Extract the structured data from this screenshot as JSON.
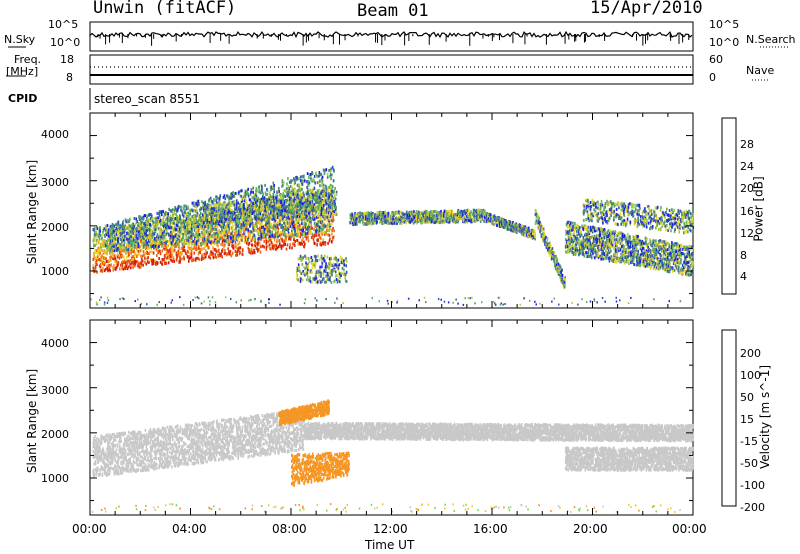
{
  "header": {
    "radar": "Unwin (fitACF)",
    "beam": "Beam 01",
    "date": "15/Apr/2010"
  },
  "top_panels": {
    "nsky_label": "N.Sky",
    "nsearch_label": "N.Search",
    "noise_ticks": [
      "10^5",
      "10^0"
    ],
    "freq_label": "Freq.",
    "freq_unit": "[MHz]",
    "freq_ticks": [
      "18",
      "8"
    ],
    "nave_label": "Nave",
    "nave_ticks": [
      "60",
      "0"
    ],
    "cpid_label": "CPID",
    "cpid_value": "stereo_scan 8551"
  },
  "chart_data": [
    {
      "type": "heatmap",
      "name": "power",
      "xlabel": "",
      "ylabel": "Slant Range [km]",
      "xlim": [
        0,
        24
      ],
      "ylim": [
        180,
        4500
      ],
      "y_ticks": [
        "1000",
        "2000",
        "3000",
        "4000"
      ],
      "colorbar_label": "Power [dB]",
      "colorbar_ticks": [
        "4",
        "8",
        "12",
        "16",
        "20",
        "24",
        "28"
      ],
      "colorbar_range": [
        0,
        30
      ],
      "colorbar_colors": [
        "#1e1ee6",
        "#2b5aa8",
        "#4a8a78",
        "#5fb060",
        "#b4c83c",
        "#f0d22a",
        "#f5a020",
        "#f06a14",
        "#e03a10",
        "#d21a0a"
      ],
      "regions": [
        {
          "t": [
            0.1,
            9.7
          ],
          "r0": [
            1050,
            1730
          ],
          "r1": [
            1150,
            2040
          ],
          "h0": [
            600,
            880
          ],
          "h1": [
            1000,
            1700
          ],
          "dens": 0.85
        },
        {
          "t": [
            0.6,
            9.6
          ],
          "r0": [
            1500,
            1900
          ],
          "r1": [
            1800,
            2400
          ],
          "h0": [
            350,
            400
          ],
          "h1": [
            500,
            900
          ],
          "dens": 0.5
        },
        {
          "t": [
            4.5,
            9.8
          ],
          "r0": [
            2100,
            2300
          ],
          "r1": [
            2300,
            2700
          ],
          "h0": [
            200,
            200
          ],
          "h1": [
            400,
            600
          ],
          "dens": 0.45
        },
        {
          "t": [
            8.2,
            10.2
          ],
          "r0": [
            800,
            800
          ],
          "r1": [
            1200,
            1200
          ],
          "h0": [
            300,
            300
          ],
          "h1": [
            600,
            600
          ],
          "dens": 0.35
        },
        {
          "t": [
            10.3,
            15.7
          ],
          "r0": [
            2080,
            2150
          ],
          "r1": [
            2100,
            2150
          ],
          "h0": [
            220,
            220
          ],
          "h1": [
            260,
            260
          ],
          "dens": 0.5
        },
        {
          "t": [
            15.7,
            17.7
          ],
          "r0": [
            2150,
            1750
          ],
          "r1": [
            2150,
            1750
          ],
          "h0": [
            200,
            200
          ],
          "h1": [
            200,
            200
          ],
          "dens": 0.5
        },
        {
          "t": [
            17.7,
            18.9
          ],
          "r0": [
            2100,
            600
          ],
          "r1": [
            2100,
            600
          ],
          "h0": [
            180,
            180
          ],
          "h1": [
            300,
            300
          ],
          "dens": 0.45
        },
        {
          "t": [
            18.9,
            24
          ],
          "r0": [
            1500,
            980
          ],
          "r1": [
            1400,
            1050
          ],
          "h0": [
            700,
            650
          ],
          "h1": [
            700,
            650
          ],
          "dens": 0.8
        },
        {
          "t": [
            19.6,
            24
          ],
          "r0": [
            2200,
            1900
          ],
          "r1": [
            2200,
            1900
          ],
          "h0": [
            500,
            500
          ],
          "h1": [
            500,
            500
          ],
          "dens": 0.35
        }
      ]
    },
    {
      "type": "heatmap",
      "name": "velocity",
      "xlabel": "Time UT",
      "ylabel": "Slant Range [km]",
      "xlim": [
        0,
        24
      ],
      "ylim": [
        180,
        4500
      ],
      "x_ticks": [
        "00:00",
        "04:00",
        "08:00",
        "12:00",
        "16:00",
        "20:00",
        "00:00"
      ],
      "y_ticks": [
        "1000",
        "2000",
        "3000",
        "4000"
      ],
      "colorbar_label": "Velocity [m s^-1]",
      "colorbar_ticks": [
        "200",
        "100",
        "50",
        "15",
        "-15",
        "-50",
        "-100",
        "-200"
      ],
      "colorbar_colors": [
        "#1e3cc8",
        "#2a7d78",
        "#35a63a",
        "#78d848",
        "#c8c8c8",
        "#f0c832",
        "#f59624",
        "#f06a14",
        "#e03a10",
        "#d21a0a"
      ],
      "regions": [
        {
          "t": [
            0.1,
            8.5
          ],
          "r0": [
            1050,
            1650
          ],
          "r1": [
            1200,
            2100
          ],
          "h0": [
            700,
            700
          ],
          "h1": [
            900,
            900
          ],
          "dens": 0.95,
          "color": "#c8c8c8"
        },
        {
          "t": [
            8.5,
            24
          ],
          "r0": [
            1900,
            1850
          ],
          "r1": [
            2150,
            1850
          ],
          "h0": [
            350,
            350
          ],
          "h1": [
            350,
            350
          ],
          "dens": 0.8,
          "color": "#c8c8c8"
        },
        {
          "t": [
            18.9,
            24
          ],
          "r0": [
            1200,
            1200
          ],
          "r1": [
            1200,
            1200
          ],
          "h0": [
            500,
            500
          ],
          "h1": [
            500,
            500
          ],
          "dens": 0.9,
          "color": "#c8c8c8"
        },
        {
          "t": [
            7.5,
            9.5
          ],
          "r0": [
            2200,
            2450
          ],
          "r1": [
            2300,
            2650
          ],
          "h0": [
            300,
            300
          ],
          "h1": [
            300,
            300
          ],
          "dens": 0.7,
          "color": "#f59624"
        },
        {
          "t": [
            8.0,
            10.3
          ],
          "r0": [
            850,
            1100
          ],
          "r1": [
            850,
            1100
          ],
          "h0": [
            700,
            500
          ],
          "h1": [
            700,
            500
          ],
          "dens": 0.7,
          "color": "#f59624"
        }
      ]
    }
  ]
}
